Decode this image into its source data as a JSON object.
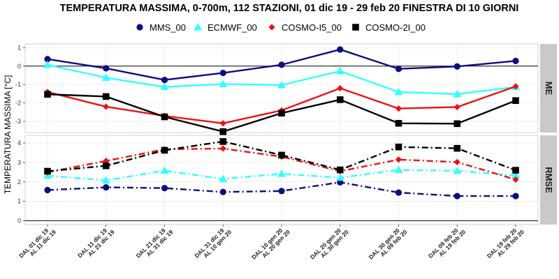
{
  "title": "TEMPERATURA MASSIMA, 0-700m, 112 STAZIONI, 01 dic 19 - 29 feb 20 FINESTRA DI 10 GIORNI",
  "ylabel": "TEMPERATURA MASSIMA [°C]",
  "colors": {
    "MMS_00": "#0d0d80",
    "ECMWF_00": "#33ffff",
    "COSMO-I5_00": "#ee1111",
    "COSMO-2I_00": "#000000",
    "panel_bg": "#ffffff",
    "grid": "#e6e6e6",
    "strip_bg": "#c9c9c9"
  },
  "chart_data": {
    "type": "line",
    "categories": [
      [
        "DAL 01 dic 19",
        "AL 11 dic 19"
      ],
      [
        "DAL 11 dic 19",
        "AL 21 dic 19"
      ],
      [
        "DAL 21 dic 19",
        "AL 31 dic 19"
      ],
      [
        "DAL 31 dic 19",
        "AL 10 gen 20"
      ],
      [
        "DAL 10 gen 20",
        "AL 20 gen 20"
      ],
      [
        "DAL 20 gen 20",
        "AL 30 gen 20"
      ],
      [
        "DAL 30 gen 20",
        "AL 09 feb 20"
      ],
      [
        "DAL 09 feb 20",
        "AL 19 feb 20"
      ],
      [
        "DAL 19 feb 20",
        "AL 29 feb 20"
      ]
    ],
    "legend": [
      {
        "name": "MMS_00",
        "marker": "circle"
      },
      {
        "name": "ECMWF_00",
        "marker": "triangle"
      },
      {
        "name": "COSMO-I5_00",
        "marker": "diamond"
      },
      {
        "name": "COSMO-2I_00",
        "marker": "square"
      }
    ],
    "legend_position": "top",
    "panels": [
      {
        "strip": "ME",
        "ylim": [
          -3.6,
          1.2
        ],
        "yticks": [
          -3,
          -2,
          -1,
          0,
          1
        ],
        "zero_line": true,
        "line_style": "solid",
        "series": [
          {
            "name": "MMS_00",
            "values": [
              0.38,
              -0.12,
              -0.75,
              -0.37,
              0.07,
              0.9,
              -0.15,
              -0.02,
              0.28
            ]
          },
          {
            "name": "ECMWF_00",
            "values": [
              0.07,
              -0.63,
              -1.13,
              -0.97,
              -1.03,
              -0.27,
              -1.4,
              -1.52,
              -1.13
            ]
          },
          {
            "name": "COSMO-I5_00",
            "values": [
              -1.4,
              -2.2,
              -2.7,
              -3.1,
              -2.4,
              -1.2,
              -2.3,
              -2.22,
              -1.1
            ]
          },
          {
            "name": "COSMO-2I_00",
            "values": [
              -1.53,
              -1.65,
              -2.75,
              -3.55,
              -2.55,
              -1.82,
              -3.1,
              -3.12,
              -1.87
            ]
          }
        ]
      },
      {
        "strip": "RMSE",
        "ylim": [
          -0.2,
          4.4
        ],
        "yticks": [
          0,
          1,
          2,
          3,
          4
        ],
        "zero_line": true,
        "line_style": "dashdot",
        "series": [
          {
            "name": "MMS_00",
            "values": [
              1.58,
              1.72,
              1.68,
              1.48,
              1.53,
              1.98,
              1.45,
              1.27,
              1.27
            ]
          },
          {
            "name": "ECMWF_00",
            "values": [
              2.32,
              2.08,
              2.58,
              2.15,
              2.42,
              2.22,
              2.62,
              2.57,
              2.33
            ]
          },
          {
            "name": "COSMO-I5_00",
            "values": [
              2.5,
              3.08,
              3.68,
              3.72,
              3.3,
              2.55,
              3.15,
              3.02,
              2.12
            ]
          },
          {
            "name": "COSMO-2I_00",
            "values": [
              2.55,
              2.83,
              3.63,
              4.08,
              3.38,
              2.62,
              3.8,
              3.73,
              2.6
            ]
          }
        ]
      }
    ]
  }
}
